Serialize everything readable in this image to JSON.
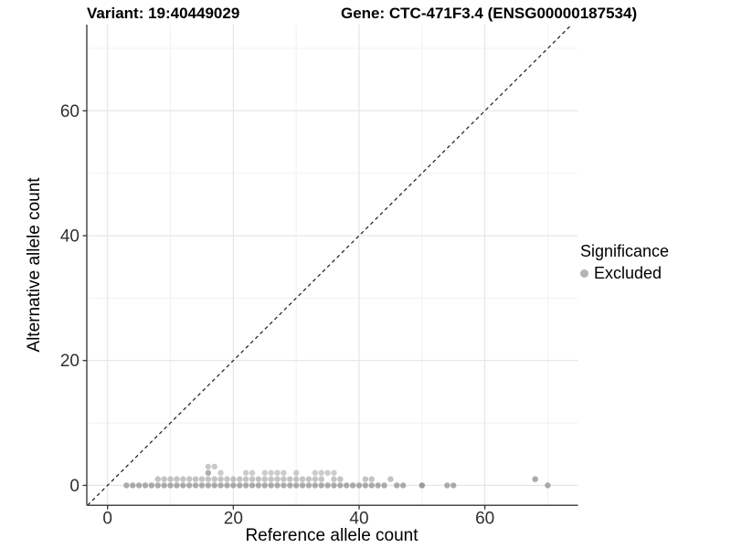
{
  "chart_data": {
    "type": "scatter",
    "title_left": "Variant: 19:40449029",
    "title_right": "Gene: CTC-471F3.4 (ENSG00000187534)",
    "xlabel": "Reference allele count",
    "ylabel": "Alternative allele count",
    "xlim": [
      -3.3,
      74.8
    ],
    "ylim": [
      -3.2,
      73.8
    ],
    "x_ticks": [
      0,
      20,
      40,
      60
    ],
    "y_ticks": [
      0,
      20,
      40,
      60
    ],
    "x_minor": [
      10,
      30,
      50,
      70
    ],
    "y_minor": [
      10,
      30,
      50,
      70
    ],
    "grid": "on",
    "legend_position": "right-middle",
    "reference_line": {
      "type": "diagonal-dashed",
      "x1": -3.2,
      "y1": -3.2,
      "x2": 73.8,
      "y2": 73.8
    },
    "legend": {
      "title": "Significance",
      "items": [
        {
          "label": "Excluded",
          "color": "#b4b4b4"
        }
      ]
    },
    "series": [
      {
        "name": "Excluded",
        "color": "#8c8c8c",
        "point_radius": 3.2,
        "rows": [
          {
            "y": 0,
            "opacity": 0.72,
            "xs": [
              3,
              4,
              5,
              6,
              7,
              8,
              9,
              10,
              11,
              12,
              13,
              14,
              15,
              16,
              17,
              18,
              19,
              20,
              21,
              22,
              23,
              24,
              25,
              26,
              27,
              28,
              29,
              30,
              31,
              32,
              33,
              34,
              35,
              36,
              37,
              38,
              39,
              40,
              41,
              42,
              43,
              44,
              46,
              47,
              50,
              54,
              55,
              70
            ]
          },
          {
            "y": 1,
            "opacity": 0.52,
            "xs": [
              8,
              9,
              10,
              11,
              12,
              13,
              14,
              15,
              16,
              17,
              18,
              19,
              20,
              21,
              22,
              23,
              24,
              25,
              26,
              27,
              28,
              29,
              30,
              31,
              32,
              33,
              34,
              36,
              37,
              41,
              42,
              45,
              68
            ]
          },
          {
            "y": 2,
            "opacity": 0.44,
            "xs": [
              16,
              18,
              22,
              23,
              25,
              26,
              27,
              28,
              30,
              33,
              34,
              35,
              36
            ]
          },
          {
            "y": 3,
            "opacity": 0.48,
            "xs": [
              16,
              17
            ]
          }
        ],
        "overplotted_points": [
          {
            "x": 50,
            "y": 0
          },
          {
            "x": 68,
            "y": 1
          },
          {
            "x": 16,
            "y": 2
          }
        ]
      }
    ]
  },
  "colors": {
    "background": "#ffffff",
    "grid_major": "#e4e4e4",
    "grid_minor": "#f1f1f1",
    "axis_line": "#4a4a4a",
    "tick_mark": "#333333",
    "tick_text": "#303030",
    "title_text": "#000000",
    "diagonal_line": "#1a1a1a"
  }
}
